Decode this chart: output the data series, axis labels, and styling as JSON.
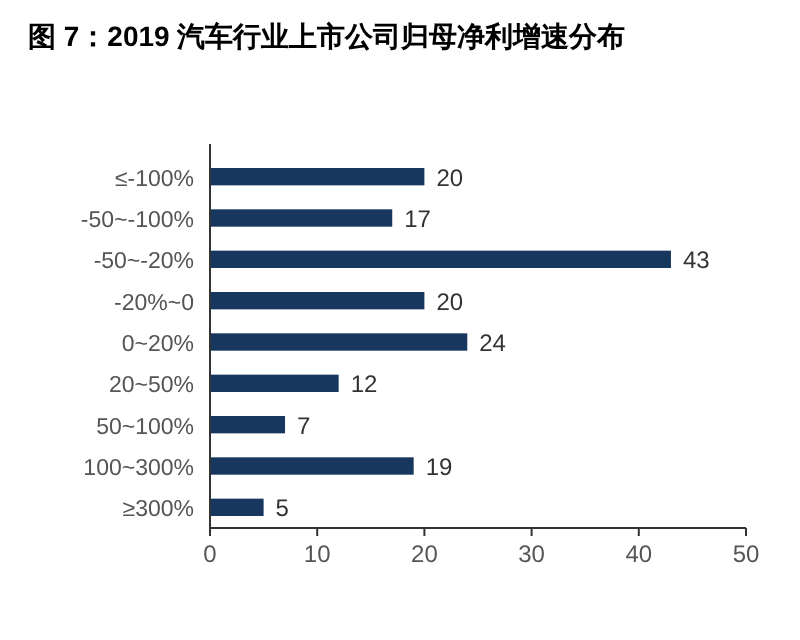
{
  "chart_data": {
    "type": "bar",
    "orientation": "horizontal",
    "title": "图 7：2019 汽车行业上市公司归母净利增速分布",
    "categories": [
      "≤-100%",
      "-50~-100%",
      "-50~-20%",
      "-20%~0",
      "0~20%",
      "20~50%",
      "50~100%",
      "100~300%",
      "≥300%"
    ],
    "values": [
      20,
      17,
      43,
      20,
      24,
      12,
      7,
      19,
      5
    ],
    "color": "#17375e",
    "xlim": [
      0,
      50
    ],
    "xticks": [
      0,
      10,
      20,
      30,
      40,
      50
    ],
    "data_labels": true
  }
}
